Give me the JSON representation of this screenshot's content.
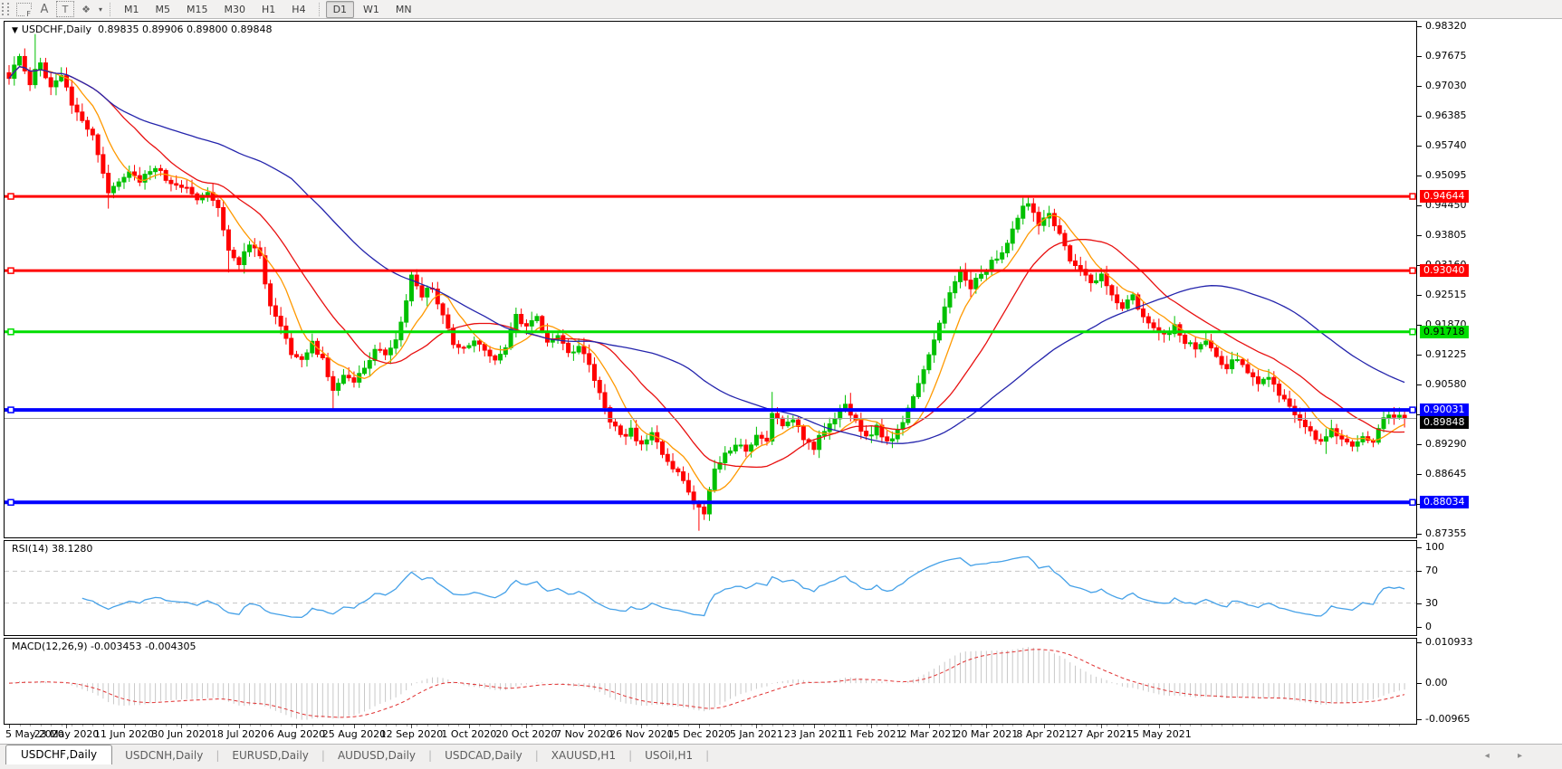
{
  "toolbar": {
    "icons": [
      {
        "name": "fibonacci-tool-icon",
        "glyph": "F"
      },
      {
        "name": "text-annotation-icon",
        "glyph": "A"
      },
      {
        "name": "text-tool-icon",
        "glyph": "T"
      },
      {
        "name": "arrows-tool-icon",
        "glyph": "❖"
      },
      {
        "name": "arrows-dropdown-caret",
        "glyph": "▾"
      }
    ],
    "timeframes": [
      {
        "label": "M1",
        "active": false
      },
      {
        "label": "M5",
        "active": false
      },
      {
        "label": "M15",
        "active": false
      },
      {
        "label": "M30",
        "active": false
      },
      {
        "label": "H1",
        "active": false
      },
      {
        "label": "H4",
        "active": false
      },
      {
        "label": "D1",
        "active": true
      },
      {
        "label": "W1",
        "active": false
      },
      {
        "label": "MN",
        "active": false
      }
    ]
  },
  "chart": {
    "title_triangle": "▼",
    "symbol_title": "USDCHF,Daily",
    "ohlc": "0.89835 0.89906 0.89800 0.89848"
  },
  "indicators": {
    "rsi_label": "RSI(14) 38.1280",
    "macd_label": "MACD(12,26,9) -0.003453 -0.004305"
  },
  "tabs": {
    "items": [
      {
        "label": "USDCHF,Daily",
        "active": true
      },
      {
        "label": "USDCNH,Daily",
        "active": false
      },
      {
        "label": "EURUSD,Daily",
        "active": false
      },
      {
        "label": "AUDUSD,Daily",
        "active": false
      },
      {
        "label": "USDCAD,Daily",
        "active": false
      },
      {
        "label": "XAUUSD,H1",
        "active": false
      },
      {
        "label": "USOil,H1",
        "active": false
      }
    ],
    "scroll_arrows": "◂ ▸"
  },
  "colors": {
    "up": "#00C000",
    "down": "#FF0000",
    "ma_fast": "#FF9900",
    "ma_mid": "#E81010",
    "ma_slow": "#2424AC",
    "hline_red": "#FF0000",
    "hline_green": "#00DE00",
    "hline_blue": "#0000FF",
    "current_line": "#9C9C9C",
    "current_box": "#000000",
    "rsi": "#45A1E8",
    "macd_hist": "#C8C8C8",
    "macd_signal": "#E03030",
    "dashed_level": "#C4C4C4"
  },
  "chart_data": [
    {
      "type": "candlestick",
      "symbol": "USDCHF",
      "timeframe": "Daily",
      "open": 0.89835,
      "high": 0.89906,
      "low": 0.898,
      "close": 0.89848,
      "bars": 268,
      "ylim": [
        0.87355,
        0.9832
      ],
      "y_ticks": [
        0.9832,
        0.97675,
        0.9703,
        0.96385,
        0.9574,
        0.95095,
        0.9445,
        0.93805,
        0.9316,
        0.92515,
        0.9187,
        0.91225,
        0.9058,
        0.89935,
        0.8929,
        0.88645,
        0.88,
        0.87355
      ],
      "price_keyframes": [
        [
          0,
          0.9725
        ],
        [
          2,
          0.9762
        ],
        [
          4,
          0.9712
        ],
        [
          6,
          0.9752
        ],
        [
          8,
          0.9702
        ],
        [
          10,
          0.9722
        ],
        [
          12,
          0.9668
        ],
        [
          14,
          0.9632
        ],
        [
          16,
          0.9592
        ],
        [
          19,
          0.9468
        ],
        [
          21,
          0.9496
        ],
        [
          23,
          0.9521
        ],
        [
          25,
          0.9501
        ],
        [
          28,
          0.9526
        ],
        [
          31,
          0.9491
        ],
        [
          34,
          0.9484
        ],
        [
          36,
          0.9463
        ],
        [
          38,
          0.9479
        ],
        [
          40,
          0.9446
        ],
        [
          42,
          0.9346
        ],
        [
          44,
          0.9316
        ],
        [
          46,
          0.9366
        ],
        [
          48,
          0.9331
        ],
        [
          50,
          0.9231
        ],
        [
          52,
          0.9181
        ],
        [
          54,
          0.9121
        ],
        [
          56,
          0.9111
        ],
        [
          58,
          0.9146
        ],
        [
          60,
          0.9111
        ],
        [
          62,
          0.9043
        ],
        [
          64,
          0.9076
        ],
        [
          66,
          0.9059
        ],
        [
          68,
          0.9099
        ],
        [
          70,
          0.9131
        ],
        [
          72,
          0.9123
        ],
        [
          74,
          0.9153
        ],
        [
          76,
          0.9236
        ],
        [
          77,
          0.9289
        ],
        [
          79,
          0.9253
        ],
        [
          81,
          0.9269
        ],
        [
          83,
          0.9209
        ],
        [
          85,
          0.9149
        ],
        [
          87,
          0.9133
        ],
        [
          89,
          0.9159
        ],
        [
          91,
          0.9137
        ],
        [
          93,
          0.9107
        ],
        [
          95,
          0.9141
        ],
        [
          97,
          0.9209
        ],
        [
          99,
          0.9179
        ],
        [
          101,
          0.9199
        ],
        [
          103,
          0.9151
        ],
        [
          105,
          0.9163
        ],
        [
          107,
          0.9121
        ],
        [
          109,
          0.9137
        ],
        [
          111,
          0.9101
        ],
        [
          113,
          0.9043
        ],
        [
          115,
          0.8983
        ],
        [
          117,
          0.8943
        ],
        [
          119,
          0.8963
        ],
        [
          121,
          0.8923
        ],
        [
          123,
          0.8953
        ],
        [
          125,
          0.8903
        ],
        [
          127,
          0.8873
        ],
        [
          129,
          0.8853
        ],
        [
          131,
          0.8803
        ],
        [
          133,
          0.8783
        ],
        [
          135,
          0.8873
        ],
        [
          137,
          0.8903
        ],
        [
          139,
          0.8933
        ],
        [
          141,
          0.8913
        ],
        [
          143,
          0.8953
        ],
        [
          145,
          0.8933
        ],
        [
          146,
          0.8998
        ],
        [
          148,
          0.8963
        ],
        [
          150,
          0.8983
        ],
        [
          152,
          0.8943
        ],
        [
          154,
          0.8923
        ],
        [
          156,
          0.8963
        ],
        [
          158,
          0.8991
        ],
        [
          160,
          0.9021
        ],
        [
          162,
          0.8976
        ],
        [
          164,
          0.8943
        ],
        [
          166,
          0.8966
        ],
        [
          168,
          0.8936
        ],
        [
          170,
          0.8956
        ],
        [
          172,
          0.9001
        ],
        [
          174,
          0.9061
        ],
        [
          176,
          0.9121
        ],
        [
          178,
          0.9191
        ],
        [
          180,
          0.9253
        ],
        [
          182,
          0.9303
        ],
        [
          184,
          0.9271
        ],
        [
          186,
          0.9296
        ],
        [
          188,
          0.9321
        ],
        [
          190,
          0.9341
        ],
        [
          192,
          0.9396
        ],
        [
          194,
          0.9441
        ],
        [
          195,
          0.9453
        ],
        [
          197,
          0.9406
        ],
        [
          199,
          0.9421
        ],
        [
          201,
          0.9381
        ],
        [
          203,
          0.9331
        ],
        [
          205,
          0.9306
        ],
        [
          207,
          0.9276
        ],
        [
          209,
          0.9296
        ],
        [
          211,
          0.9251
        ],
        [
          213,
          0.9226
        ],
        [
          215,
          0.9246
        ],
        [
          217,
          0.9206
        ],
        [
          219,
          0.9186
        ],
        [
          221,
          0.9166
        ],
        [
          223,
          0.9181
        ],
        [
          225,
          0.9151
        ],
        [
          227,
          0.9136
        ],
        [
          229,
          0.9149
        ],
        [
          231,
          0.9113
        ],
        [
          233,
          0.9096
        ],
        [
          235,
          0.9113
        ],
        [
          237,
          0.9081
        ],
        [
          239,
          0.9063
        ],
        [
          241,
          0.9073
        ],
        [
          243,
          0.9041
        ],
        [
          245,
          0.9011
        ],
        [
          247,
          0.8986
        ],
        [
          249,
          0.8953
        ],
        [
          251,
          0.8936
        ],
        [
          253,
          0.8963
        ],
        [
          255,
          0.8941
        ],
        [
          257,
          0.8921
        ],
        [
          259,
          0.8946
        ],
        [
          261,
          0.8929
        ],
        [
          263,
          0.8986
        ],
        [
          265,
          0.8991
        ],
        [
          267,
          0.89848
        ]
      ],
      "wick_overrides": {
        "5": {
          "high": 0.9815
        },
        "19": {
          "low": 0.9438
        },
        "42": {
          "low": 0.93
        },
        "62": {
          "low": 0.9003
        },
        "77": {
          "high": 0.9298
        },
        "132": {
          "low": 0.8742
        },
        "146": {
          "high": 0.9042
        },
        "161": {
          "high": 0.904
        },
        "195": {
          "high": 0.9464
        },
        "252": {
          "low": 0.8908
        }
      },
      "ma_overlays": [
        {
          "period": 8,
          "color_key": "ma_fast"
        },
        {
          "period": 20,
          "color_key": "ma_mid"
        },
        {
          "period": 55,
          "color_key": "ma_slow"
        }
      ],
      "hlines": [
        {
          "price": 0.94644,
          "label": "0.94644",
          "color_key": "hline_red",
          "width": 3,
          "text": "#FFFFFF"
        },
        {
          "price": 0.9304,
          "label": "0.93040",
          "color_key": "hline_red",
          "width": 3,
          "text": "#FFFFFF"
        },
        {
          "price": 0.91718,
          "label": "0.91718",
          "color_key": "hline_green",
          "width": 3,
          "text": "#000000"
        },
        {
          "price": 0.90031,
          "label": "0.90031",
          "color_key": "hline_blue",
          "width": 4,
          "text": "#FFFFFF"
        },
        {
          "price": 0.88034,
          "label": "0.88034",
          "color_key": "hline_blue",
          "width": 4,
          "text": "#FFFFFF"
        }
      ],
      "current_price": {
        "value": 0.89848,
        "label": "0.89848"
      },
      "x_date_labels": [
        {
          "bar": 0,
          "label": "5 May 2020"
        },
        {
          "bar": 11,
          "label": "23 May 2020"
        },
        {
          "bar": 22,
          "label": "11 Jun 2020"
        },
        {
          "bar": 33,
          "label": "30 Jun 2020"
        },
        {
          "bar": 44,
          "label": "18 Jul 2020"
        },
        {
          "bar": 55,
          "label": "6 Aug 2020"
        },
        {
          "bar": 66,
          "label": "25 Aug 2020"
        },
        {
          "bar": 77,
          "label": "12 Sep 2020"
        },
        {
          "bar": 88,
          "label": "1 Oct 2020"
        },
        {
          "bar": 99,
          "label": "20 Oct 2020"
        },
        {
          "bar": 110,
          "label": "7 Nov 2020"
        },
        {
          "bar": 121,
          "label": "26 Nov 2020"
        },
        {
          "bar": 132,
          "label": "15 Dec 2020"
        },
        {
          "bar": 143,
          "label": "5 Jan 2021"
        },
        {
          "bar": 154,
          "label": "23 Jan 2021"
        },
        {
          "bar": 165,
          "label": "11 Feb 2021"
        },
        {
          "bar": 176,
          "label": "2 Mar 2021"
        },
        {
          "bar": 187,
          "label": "20 Mar 2021"
        },
        {
          "bar": 198,
          "label": "8 Apr 2021"
        },
        {
          "bar": 209,
          "label": "27 Apr 2021"
        },
        {
          "bar": 220,
          "label": "15 May 2021"
        }
      ]
    },
    {
      "type": "line",
      "indicator": "RSI",
      "period": 14,
      "current_value": 38.128,
      "ylim": [
        0,
        100
      ],
      "y_ticks": [
        100,
        70,
        30,
        0
      ],
      "dashed_levels": [
        70,
        30
      ]
    },
    {
      "type": "histogram+line",
      "indicator": "MACD",
      "params": [
        12,
        26,
        9
      ],
      "current_macd": -0.003453,
      "current_signal": -0.004305,
      "ylim": [
        -0.00965,
        0.010933
      ],
      "y_ticks": [
        0.010933,
        0.0,
        -0.00965
      ],
      "y_tick_labels": [
        "0.010933",
        "0.00",
        "-0.00965"
      ]
    }
  ]
}
